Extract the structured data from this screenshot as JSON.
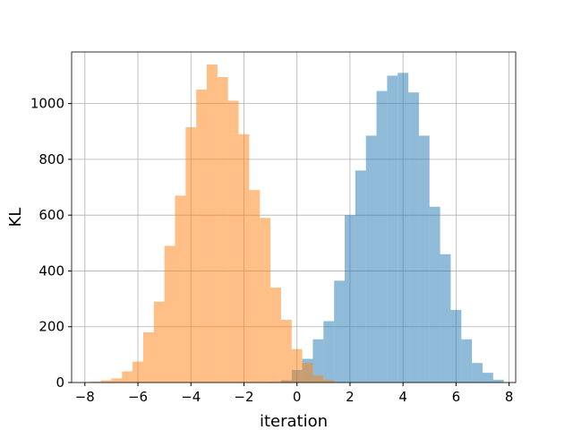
{
  "chart_data": {
    "type": "histogram",
    "title": "",
    "xlabel": "iteration",
    "ylabel": "KL",
    "xlim": [
      -8.5,
      8.25
    ],
    "ylim": [
      0,
      1185
    ],
    "xticks": [
      -8,
      -6,
      -4,
      -2,
      0,
      2,
      4,
      6,
      8
    ],
    "xtick_labels": [
      "−8",
      "−6",
      "−4",
      "−2",
      "0",
      "2",
      "4",
      "6",
      "8"
    ],
    "yticks": [
      0,
      200,
      400,
      600,
      800,
      1000
    ],
    "ytick_labels": [
      "0",
      "200",
      "400",
      "600",
      "800",
      "1000"
    ],
    "grid": true,
    "legend": null,
    "series": [
      {
        "color": "#1f77b4",
        "opacity": 0.5,
        "bins": [
          {
            "x0": -1.0,
            "x1": -0.6,
            "count": 2
          },
          {
            "x0": -0.6,
            "x1": -0.2,
            "count": 8
          },
          {
            "x0": -0.2,
            "x1": 0.2,
            "count": 45
          },
          {
            "x0": 0.2,
            "x1": 0.6,
            "count": 85
          },
          {
            "x0": 0.6,
            "x1": 1.0,
            "count": 155
          },
          {
            "x0": 1.0,
            "x1": 1.4,
            "count": 220
          },
          {
            "x0": 1.4,
            "x1": 1.8,
            "count": 365
          },
          {
            "x0": 1.8,
            "x1": 2.2,
            "count": 600
          },
          {
            "x0": 2.2,
            "x1": 2.6,
            "count": 760
          },
          {
            "x0": 2.6,
            "x1": 3.0,
            "count": 885
          },
          {
            "x0": 3.0,
            "x1": 3.4,
            "count": 1045
          },
          {
            "x0": 3.4,
            "x1": 3.8,
            "count": 1100
          },
          {
            "x0": 3.8,
            "x1": 4.2,
            "count": 1110
          },
          {
            "x0": 4.2,
            "x1": 4.6,
            "count": 1040
          },
          {
            "x0": 4.6,
            "x1": 5.0,
            "count": 885
          },
          {
            "x0": 5.0,
            "x1": 5.4,
            "count": 630
          },
          {
            "x0": 5.4,
            "x1": 5.8,
            "count": 460
          },
          {
            "x0": 5.8,
            "x1": 6.2,
            "count": 260
          },
          {
            "x0": 6.2,
            "x1": 6.6,
            "count": 155
          },
          {
            "x0": 6.6,
            "x1": 7.0,
            "count": 70
          },
          {
            "x0": 7.0,
            "x1": 7.4,
            "count": 35
          },
          {
            "x0": 7.4,
            "x1": 7.8,
            "count": 10
          }
        ]
      },
      {
        "color": "#ff7f0e",
        "opacity": 0.5,
        "bins": [
          {
            "x0": -7.8,
            "x1": -7.4,
            "count": 3
          },
          {
            "x0": -7.4,
            "x1": -7.0,
            "count": 8
          },
          {
            "x0": -7.0,
            "x1": -6.6,
            "count": 15
          },
          {
            "x0": -6.6,
            "x1": -6.2,
            "count": 40
          },
          {
            "x0": -6.2,
            "x1": -5.8,
            "count": 75
          },
          {
            "x0": -5.8,
            "x1": -5.4,
            "count": 180
          },
          {
            "x0": -5.4,
            "x1": -5.0,
            "count": 290
          },
          {
            "x0": -5.0,
            "x1": -4.6,
            "count": 490
          },
          {
            "x0": -4.6,
            "x1": -4.2,
            "count": 670
          },
          {
            "x0": -4.2,
            "x1": -3.8,
            "count": 915
          },
          {
            "x0": -3.8,
            "x1": -3.4,
            "count": 1050
          },
          {
            "x0": -3.4,
            "x1": -3.0,
            "count": 1140
          },
          {
            "x0": -3.0,
            "x1": -2.6,
            "count": 1095
          },
          {
            "x0": -2.6,
            "x1": -2.2,
            "count": 1010
          },
          {
            "x0": -2.2,
            "x1": -1.8,
            "count": 890
          },
          {
            "x0": -1.8,
            "x1": -1.4,
            "count": 690
          },
          {
            "x0": -1.4,
            "x1": -1.0,
            "count": 590
          },
          {
            "x0": -1.0,
            "x1": -0.6,
            "count": 340
          },
          {
            "x0": -0.6,
            "x1": -0.2,
            "count": 225
          },
          {
            "x0": -0.2,
            "x1": 0.2,
            "count": 120
          },
          {
            "x0": 0.2,
            "x1": 0.6,
            "count": 70
          },
          {
            "x0": 0.6,
            "x1": 1.0,
            "count": 25
          },
          {
            "x0": 1.0,
            "x1": 1.4,
            "count": 10
          }
        ]
      }
    ]
  }
}
